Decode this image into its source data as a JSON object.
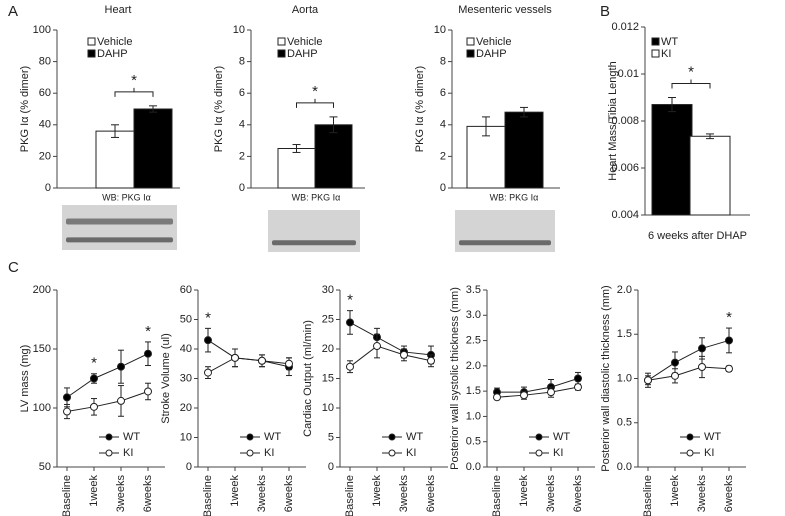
{
  "chart_data": [
    {
      "type": "bar",
      "panel": "A",
      "title": "Heart",
      "ylabel": "PKG Iα (% dimer)",
      "blot_label": "WB: PKG Iα",
      "significance": "*",
      "ylim": [
        0,
        100
      ],
      "yticks": [
        0,
        20,
        40,
        60,
        80,
        100
      ],
      "series": [
        {
          "name": "Vehicle",
          "color": "#ffffff",
          "values": [
            36
          ],
          "errors": [
            4
          ]
        },
        {
          "name": "DAHP",
          "color": "#000000",
          "values": [
            50
          ],
          "errors": [
            2
          ]
        }
      ]
    },
    {
      "type": "bar",
      "title": "Aorta",
      "ylabel": "PKG Iα (% dimer)",
      "blot_label": "WB: PKG Iα",
      "significance": "*",
      "ylim": [
        0,
        10
      ],
      "yticks": [
        0,
        2,
        4,
        6,
        8,
        10
      ],
      "series": [
        {
          "name": "Vehicle",
          "color": "#ffffff",
          "values": [
            2.5
          ],
          "errors": [
            0.25
          ]
        },
        {
          "name": "DAHP",
          "color": "#000000",
          "values": [
            4.0
          ],
          "errors": [
            0.5
          ]
        }
      ]
    },
    {
      "type": "bar",
      "title": "Mesenteric vessels",
      "ylabel": "PKG Iα (% dimer)",
      "blot_label": "WB: PKG Iα",
      "ylim": [
        0,
        10
      ],
      "yticks": [
        0,
        2,
        4,
        6,
        8,
        10
      ],
      "series": [
        {
          "name": "Vehicle",
          "color": "#ffffff",
          "values": [
            3.9
          ],
          "errors": [
            0.6
          ]
        },
        {
          "name": "DAHP",
          "color": "#000000",
          "values": [
            4.8
          ],
          "errors": [
            0.3
          ]
        }
      ]
    },
    {
      "type": "bar",
      "panel": "B",
      "ylabel": "Heart Mass/Tibia Length",
      "xlabel": "6 weeks after DHAP",
      "significance": "*",
      "ylim": [
        0.004,
        0.012
      ],
      "yticks": [
        0.004,
        0.006,
        0.008,
        0.01,
        0.012
      ],
      "series": [
        {
          "name": "WT",
          "color": "#000000",
          "values": [
            0.0087
          ],
          "errors": [
            0.0003
          ]
        },
        {
          "name": "KI",
          "color": "#ffffff",
          "values": [
            0.00735
          ],
          "errors": [
            0.0001
          ]
        }
      ]
    },
    {
      "type": "line",
      "panel": "C",
      "ylabel": "LV mass (mg)",
      "categories": [
        "Baseline",
        "1week",
        "3weeks",
        "6weeks"
      ],
      "significance": [
        null,
        "*",
        null,
        "*"
      ],
      "ylim": [
        50,
        200
      ],
      "yticks": [
        50,
        100,
        150,
        200
      ],
      "series": [
        {
          "name": "WT",
          "color": "#000000",
          "values": [
            109,
            125,
            135,
            146
          ],
          "errors": [
            8,
            4,
            14,
            10
          ]
        },
        {
          "name": "KI",
          "color": "#ffffff",
          "values": [
            97,
            101,
            106,
            114
          ],
          "errors": [
            6,
            7,
            13,
            7
          ]
        }
      ]
    },
    {
      "type": "line",
      "ylabel": "Stroke Volume (ul)",
      "categories": [
        "Baseline",
        "1week",
        "3weeks",
        "6weeks"
      ],
      "significance": [
        "*",
        null,
        null,
        null
      ],
      "ylim": [
        0,
        60
      ],
      "yticks": [
        0,
        10,
        20,
        30,
        40,
        50,
        60
      ],
      "series": [
        {
          "name": "WT",
          "color": "#000000",
          "values": [
            43,
            37,
            36,
            34
          ],
          "errors": [
            4,
            3,
            2,
            3
          ]
        },
        {
          "name": "KI",
          "color": "#ffffff",
          "values": [
            32,
            37,
            36,
            35
          ],
          "errors": [
            2,
            3,
            2,
            2
          ]
        }
      ]
    },
    {
      "type": "line",
      "ylabel": "Cardiac Output (ml/min)",
      "categories": [
        "Baseline",
        "1week",
        "3weeks",
        "6weeks"
      ],
      "significance": [
        "*",
        null,
        null,
        null
      ],
      "ylim": [
        0,
        30
      ],
      "yticks": [
        0,
        5,
        10,
        15,
        20,
        25,
        30
      ],
      "series": [
        {
          "name": "WT",
          "color": "#000000",
          "values": [
            24.5,
            22,
            19.5,
            19
          ],
          "errors": [
            2,
            1.5,
            1,
            1.5
          ]
        },
        {
          "name": "KI",
          "color": "#ffffff",
          "values": [
            17,
            20.5,
            19,
            18
          ],
          "errors": [
            1,
            2,
            1,
            1
          ]
        }
      ]
    },
    {
      "type": "line",
      "ylabel": "Posterior wall systolic thickness (mm)",
      "categories": [
        "Baseline",
        "1week",
        "3weeks",
        "6weeks"
      ],
      "ylim": [
        0,
        3.5
      ],
      "yticks": [
        {
          "value": 0,
          "label": "0.0"
        },
        0.5,
        {
          "value": 1,
          "label": "1.0"
        },
        1.5,
        {
          "value": 2,
          "label": "2.0"
        },
        2.5,
        {
          "value": 3,
          "label": "3.0"
        },
        3.5
      ],
      "series": [
        {
          "name": "WT",
          "color": "#000000",
          "values": [
            1.48,
            1.48,
            1.58,
            1.75
          ],
          "errors": [
            0.08,
            0.1,
            0.15,
            0.12
          ]
        },
        {
          "name": "KI",
          "color": "#ffffff",
          "values": [
            1.38,
            1.42,
            1.48,
            1.58
          ],
          "errors": [
            0.05,
            0.08,
            0.1,
            0.06
          ]
        }
      ]
    },
    {
      "type": "line",
      "ylabel": "Posterior wall diastolic thickness (mm)",
      "categories": [
        "Baseline",
        "1week",
        "3weeks",
        "6weeks"
      ],
      "significance": [
        null,
        null,
        null,
        "*"
      ],
      "ylim": [
        0,
        2
      ],
      "yticks": [
        {
          "value": 0,
          "label": "0.0"
        },
        0.5,
        {
          "value": 1,
          "label": "1.0"
        },
        1.5,
        {
          "value": 2,
          "label": "2.0"
        }
      ],
      "series": [
        {
          "name": "WT",
          "color": "#000000",
          "values": [
            0.98,
            1.18,
            1.34,
            1.43
          ],
          "errors": [
            0.08,
            0.12,
            0.12,
            0.14
          ]
        },
        {
          "name": "KI",
          "color": "#ffffff",
          "values": [
            0.98,
            1.03,
            1.13,
            1.11
          ],
          "errors": [
            0.05,
            0.08,
            0.12,
            0.03
          ]
        }
      ]
    }
  ]
}
